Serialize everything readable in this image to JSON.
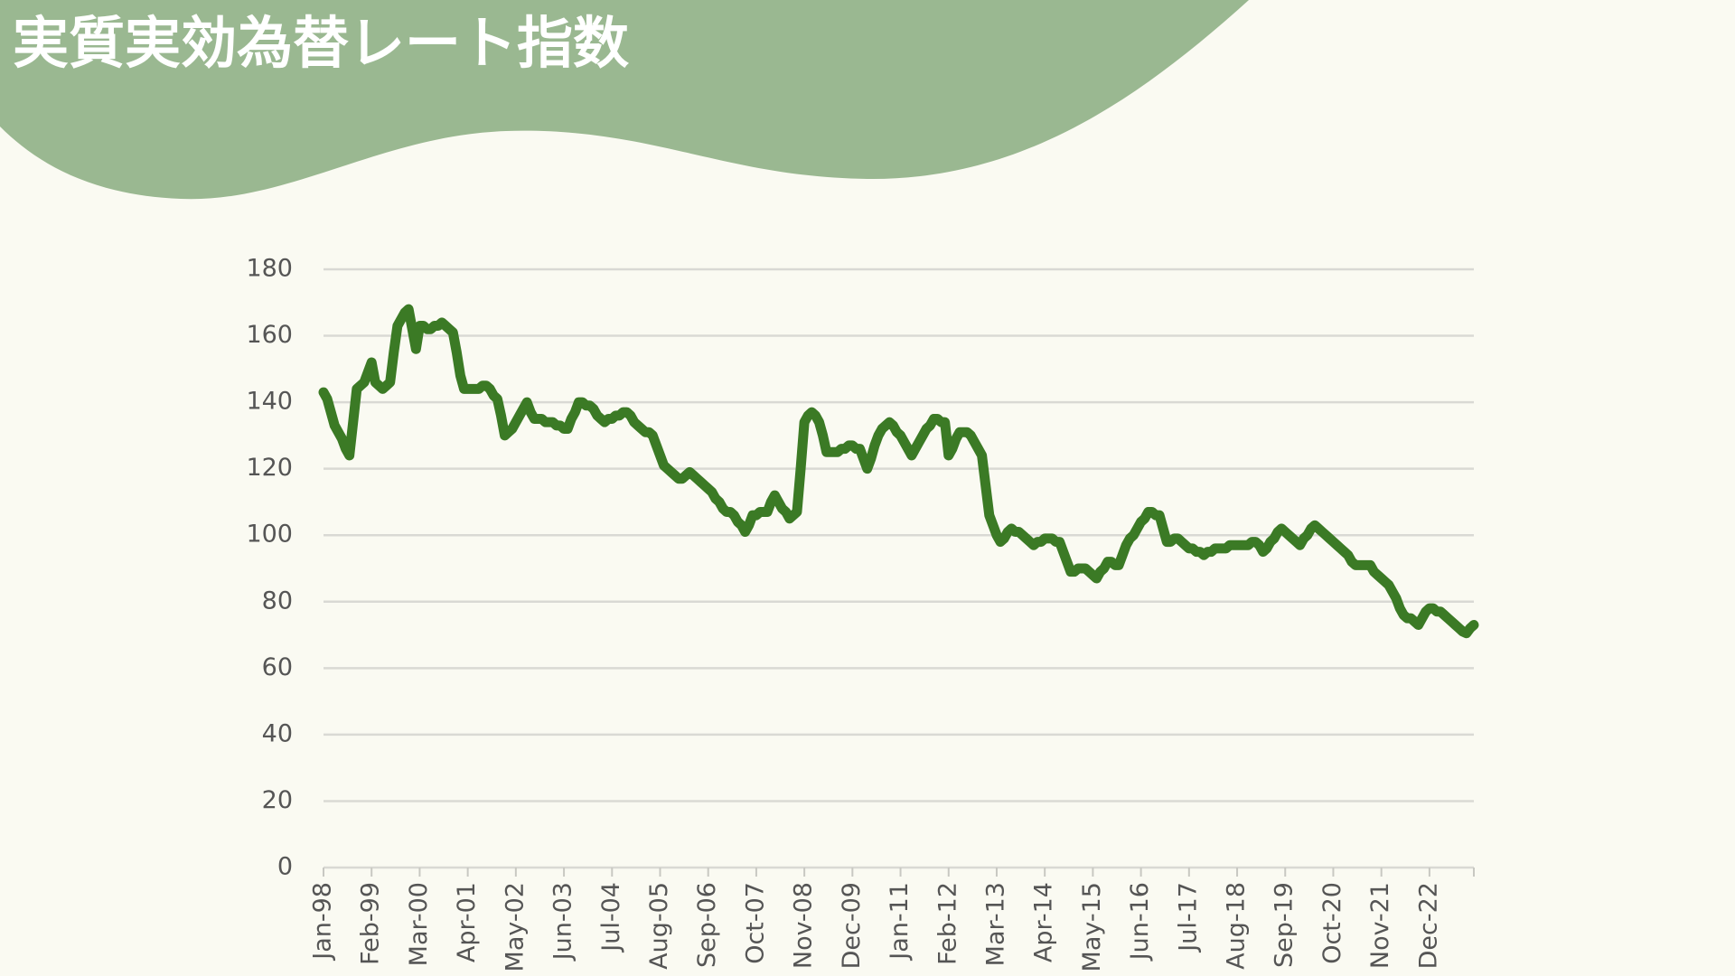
{
  "chart_data": {
    "type": "line",
    "title": "実質実効為替レート指数",
    "categories": [
      "Jan-98",
      null,
      null,
      null,
      null,
      null,
      null,
      null,
      null,
      null,
      null,
      null,
      null,
      "Feb-99",
      null,
      null,
      null,
      null,
      null,
      null,
      null,
      null,
      null,
      null,
      null,
      null,
      "Mar-00",
      null,
      null,
      null,
      null,
      null,
      null,
      null,
      null,
      null,
      null,
      null,
      null,
      "Apr-01",
      null,
      null,
      null,
      null,
      null,
      null,
      null,
      null,
      null,
      null,
      null,
      null,
      "May-02",
      null,
      null,
      null,
      null,
      null,
      null,
      null,
      null,
      null,
      null,
      null,
      null,
      "Jun-03",
      null,
      null,
      null,
      null,
      null,
      null,
      null,
      null,
      null,
      null,
      null,
      null,
      "Jul-04",
      null,
      null,
      null,
      null,
      null,
      null,
      null,
      null,
      null,
      null,
      null,
      null,
      "Aug-05",
      null,
      null,
      null,
      null,
      null,
      null,
      null,
      null,
      null,
      null,
      null,
      null,
      "Sep-06",
      null,
      null,
      null,
      null,
      null,
      null,
      null,
      null,
      null,
      null,
      null,
      null,
      "Oct-07",
      null,
      null,
      null,
      null,
      null,
      null,
      null,
      null,
      null,
      null,
      null,
      null,
      "Nov-08",
      null,
      null,
      null,
      null,
      null,
      null,
      null,
      null,
      null,
      null,
      null,
      null,
      "Dec-09",
      null,
      null,
      null,
      null,
      null,
      null,
      null,
      null,
      null,
      null,
      null,
      null,
      "Jan-11",
      null,
      null,
      null,
      null,
      null,
      null,
      null,
      null,
      null,
      null,
      null,
      null,
      "Feb-12",
      null,
      null,
      null,
      null,
      null,
      null,
      null,
      null,
      null,
      null,
      null,
      null,
      "Mar-13",
      null,
      null,
      null,
      null,
      null,
      null,
      null,
      null,
      null,
      null,
      null,
      null,
      "Apr-14",
      null,
      null,
      null,
      null,
      null,
      null,
      null,
      null,
      null,
      null,
      null,
      null,
      "May-15",
      null,
      null,
      null,
      null,
      null,
      null,
      null,
      null,
      null,
      null,
      null,
      null,
      "Jun-16",
      null,
      null,
      null,
      null,
      null,
      null,
      null,
      null,
      null,
      null,
      null,
      null,
      "Jul-17",
      null,
      null,
      null,
      null,
      null,
      null,
      null,
      null,
      null,
      null,
      null,
      null,
      "Aug-18",
      null,
      null,
      null,
      null,
      null,
      null,
      null,
      null,
      null,
      null,
      null,
      null,
      "Sep-19",
      null,
      null,
      null,
      null,
      null,
      null,
      null,
      null,
      null,
      null,
      null,
      null,
      "Oct-20",
      null,
      null,
      null,
      null,
      null,
      null,
      null,
      null,
      null,
      null,
      null,
      null,
      "Nov-21",
      null,
      null,
      null,
      null,
      null,
      null,
      null,
      null,
      null,
      null,
      null,
      null,
      "Dec-22",
      null,
      null,
      null,
      null,
      null,
      null,
      null,
      null,
      null,
      null,
      null,
      null
    ],
    "values": [
      143,
      141,
      137,
      133,
      131,
      129,
      126,
      124,
      134,
      144,
      145,
      146,
      149,
      152,
      146,
      145,
      144,
      145,
      146,
      155,
      163,
      165,
      167,
      168,
      162,
      156,
      163,
      163,
      162,
      162,
      163,
      163,
      164,
      163,
      162,
      161,
      155,
      148,
      144,
      144,
      144,
      144,
      144,
      145,
      145,
      144,
      142,
      141,
      136,
      130,
      131,
      132,
      134,
      136,
      138,
      140,
      137,
      135,
      135,
      135,
      134,
      134,
      134,
      133,
      133,
      132,
      132,
      135,
      137,
      140,
      140,
      139,
      139,
      138,
      136,
      135,
      134,
      135,
      135,
      136,
      136,
      137,
      137,
      136,
      134,
      133,
      132,
      131,
      131,
      130,
      127,
      124,
      121,
      120,
      119,
      118,
      117,
      117,
      118,
      119,
      118,
      117,
      116,
      115,
      114,
      113,
      111,
      110,
      108,
      107,
      107,
      106,
      104,
      103,
      101,
      103,
      106,
      106,
      107,
      107,
      107,
      110,
      112,
      110,
      108,
      107,
      105,
      106,
      107,
      120,
      134,
      136,
      137,
      136,
      134,
      130,
      125,
      125,
      125,
      125,
      126,
      126,
      127,
      127,
      126,
      126,
      123,
      120,
      123,
      127,
      130,
      132,
      133,
      134,
      133,
      131,
      130,
      128,
      126,
      124,
      126,
      128,
      130,
      132,
      133,
      135,
      135,
      134,
      134,
      124,
      126,
      129,
      131,
      131,
      131,
      130,
      128,
      126,
      124,
      115,
      106,
      103,
      100,
      98,
      99,
      101,
      102,
      101,
      101,
      100,
      99,
      98,
      97,
      98,
      98,
      99,
      99,
      99,
      98,
      98,
      95,
      92,
      89,
      89,
      90,
      90,
      90,
      89,
      88,
      87,
      89,
      90,
      92,
      92,
      91,
      91,
      94,
      97,
      99,
      100,
      102,
      104,
      105,
      107,
      107,
      106,
      106,
      102,
      98,
      98,
      99,
      99,
      98,
      97,
      96,
      96,
      95,
      95,
      94,
      95,
      95,
      96,
      96,
      96,
      96,
      97,
      97,
      97,
      97,
      97,
      97,
      98,
      98,
      97,
      95,
      96,
      98,
      99,
      101,
      102,
      101,
      100,
      99,
      98,
      97,
      99,
      100,
      102,
      103,
      102,
      101,
      100,
      99,
      98,
      97,
      96,
      95,
      94,
      92,
      91,
      91,
      91,
      91,
      91,
      89,
      88,
      87,
      86,
      85,
      83,
      81,
      78,
      76,
      75,
      75,
      74,
      73,
      75,
      77,
      78,
      78,
      77,
      77,
      76,
      75,
      74,
      73,
      72,
      71,
      70.5,
      72,
      73
    ],
    "color": "#3b7a25",
    "ylim": [
      0,
      180
    ],
    "yticks": [
      0,
      20,
      40,
      60,
      80,
      100,
      120,
      140,
      160,
      180
    ],
    "grid": true
  }
}
